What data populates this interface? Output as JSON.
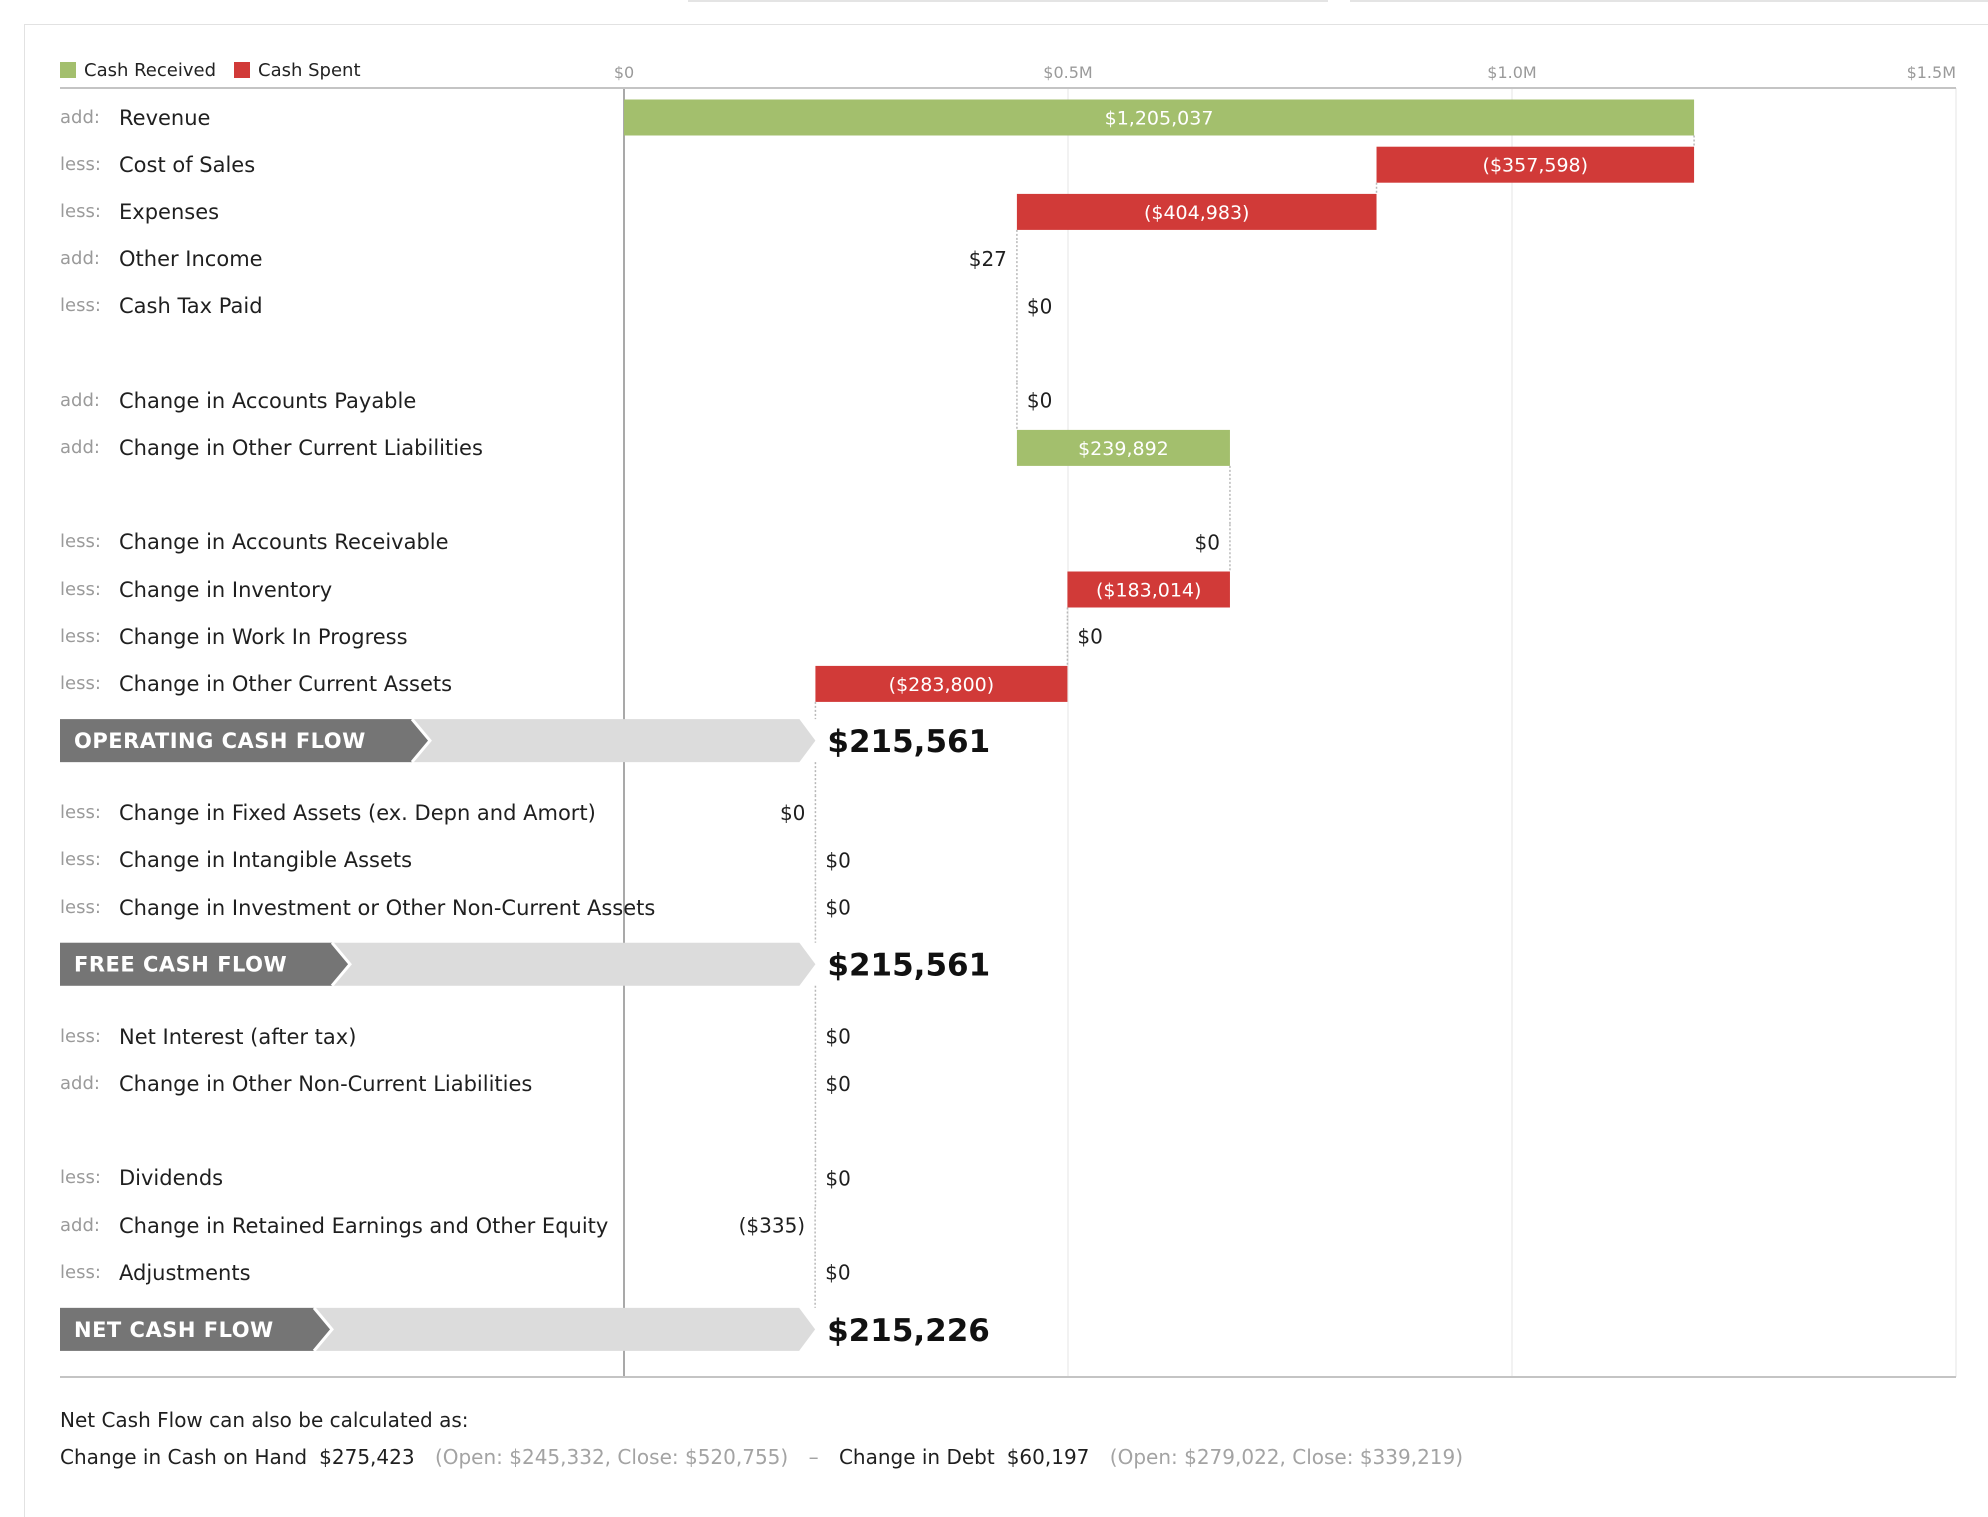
{
  "legend": [
    {
      "label": "Cash Received",
      "color": "#a3bf6d"
    },
    {
      "label": "Cash Spent",
      "color": "#d13a38"
    }
  ],
  "chart_data": {
    "type": "bar",
    "subtype": "waterfall",
    "x_axis": {
      "ticks": [
        0,
        500000,
        1000000,
        1500000
      ],
      "tick_labels": [
        "$0",
        "$0.5M",
        "$1.0M",
        "$1.5M"
      ],
      "range": [
        0,
        1500000
      ],
      "position": "top"
    },
    "colors": {
      "received": "#a3bf6d",
      "spent": "#d13a38",
      "banner_dark": "#757575",
      "banner_light": "#dcdcdc"
    },
    "rows": [
      {
        "kind": "item",
        "type": "add:",
        "name": "Revenue",
        "value": 1205037,
        "label": "$1,205,037"
      },
      {
        "kind": "item",
        "type": "less:",
        "name": "Cost of Sales",
        "value": -357598,
        "label": "($357,598)"
      },
      {
        "kind": "item",
        "type": "less:",
        "name": "Expenses",
        "value": -404983,
        "label": "($404,983)"
      },
      {
        "kind": "item",
        "type": "add:",
        "name": "Other Income",
        "value": 27,
        "label": "$27"
      },
      {
        "kind": "item",
        "type": "less:",
        "name": "Cash Tax Paid",
        "value": 0,
        "label": "$0"
      },
      {
        "kind": "spacer"
      },
      {
        "kind": "item",
        "type": "add:",
        "name": "Change in Accounts Payable",
        "value": 0,
        "label": "$0"
      },
      {
        "kind": "item",
        "type": "add:",
        "name": "Change in Other Current Liabilities",
        "value": 239892,
        "label": "$239,892"
      },
      {
        "kind": "spacer"
      },
      {
        "kind": "item",
        "type": "less:",
        "name": "Change in Accounts Receivable",
        "value": 0,
        "label": "$0"
      },
      {
        "kind": "item",
        "type": "less:",
        "name": "Change in Inventory",
        "value": -183014,
        "label": "($183,014)"
      },
      {
        "kind": "item",
        "type": "less:",
        "name": "Change in Work In Progress",
        "value": 0,
        "label": "$0"
      },
      {
        "kind": "item",
        "type": "less:",
        "name": "Change in Other Current Assets",
        "value": -283800,
        "label": "($283,800)"
      },
      {
        "kind": "total",
        "name": "OPERATING CASH FLOW",
        "value": 215561,
        "label": "$215,561"
      },
      {
        "kind": "item",
        "type": "less:",
        "name": "Change in Fixed Assets (ex. Depn and Amort)",
        "value": 0,
        "label": "$0"
      },
      {
        "kind": "item",
        "type": "less:",
        "name": "Change in Intangible Assets",
        "value": 0,
        "label": "$0"
      },
      {
        "kind": "item",
        "type": "less:",
        "name": "Change in Investment or Other Non-Current Assets",
        "value": 0,
        "label": "$0"
      },
      {
        "kind": "total",
        "name": "FREE CASH FLOW",
        "value": 215561,
        "label": "$215,561"
      },
      {
        "kind": "item",
        "type": "less:",
        "name": "Net Interest (after tax)",
        "value": 0,
        "label": "$0"
      },
      {
        "kind": "item",
        "type": "add:",
        "name": "Change in Other Non-Current Liabilities",
        "value": 0,
        "label": "$0"
      },
      {
        "kind": "spacer"
      },
      {
        "kind": "item",
        "type": "less:",
        "name": "Dividends",
        "value": 0,
        "label": "$0"
      },
      {
        "kind": "item",
        "type": "add:",
        "name": "Change in Retained Earnings and Other Equity",
        "value": -335,
        "label": "($335)"
      },
      {
        "kind": "item",
        "type": "less:",
        "name": "Adjustments",
        "value": 0,
        "label": "$0"
      },
      {
        "kind": "total",
        "name": "NET CASH FLOW",
        "value": 215226,
        "label": "$215,226"
      }
    ]
  },
  "footer": {
    "intro": "Net Cash Flow can also be calculated as:",
    "cash_label": "Change in Cash on Hand",
    "cash_value": "$275,423",
    "cash_detail": "(Open: $245,332, Close: $520,755)",
    "minus": "–",
    "debt_label": "Change in Debt",
    "debt_value": "$60,197",
    "debt_detail": "(Open: $279,022, Close: $339,219)"
  }
}
